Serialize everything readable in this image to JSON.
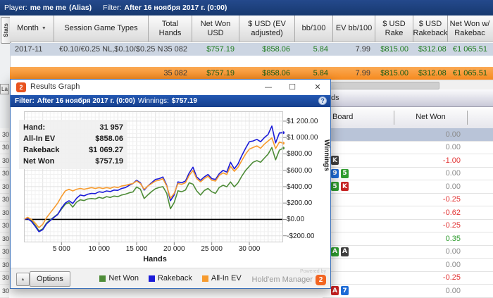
{
  "main": {
    "topbar": {
      "player_label": "Player:",
      "player": "me me me",
      "alias": "(Alias)",
      "filter_label": "Filter:",
      "filter_value": "After 16 ноября 2017 г. (0:00)"
    },
    "stats_tab": "Stats",
    "columns": [
      "Month",
      "Session Game Types",
      "Total Hands",
      "Net Won USD",
      "$ USD (EV adjusted)",
      "bb/100",
      "EV bb/100",
      "$ USD Rake",
      "$ USD Rakeback",
      "Net Won w/ Rakebac"
    ],
    "sort_icon": "▼",
    "row": {
      "month": "2017-11",
      "session": "€0.10/€0.25 NL,$0.10/$0.25 N",
      "hands": "35 082",
      "net_won": "$757.19",
      "ev_adjusted": "$858.06",
      "bb100": "5.84",
      "ev_bb100": "7.99",
      "rake": "$815.00",
      "rakeback": "$312.08",
      "net_with_rb": "€1 065.51"
    },
    "totals": {
      "hands": "35 082",
      "net_won": "$757.19",
      "ev_adjusted": "$858.06",
      "bb100": "5.84",
      "ev_bb100": "7.99",
      "rake": "$815.00",
      "rakeback": "$312.08",
      "net_with_rb": "€1 065.51"
    }
  },
  "bg_table": {
    "strip_partial_text": "ds",
    "left_tab_partial": "La",
    "left_strip_value": "30",
    "columns": {
      "board": "Board",
      "net_won": "Net Won"
    },
    "rows": [
      {
        "cards": [],
        "net": "0.00",
        "tone": "zero",
        "selected": true
      },
      {
        "cards": [],
        "net": "0.00",
        "tone": "zero",
        "selected": false
      },
      {
        "cards": [
          {
            "r": "K",
            "s": "spade"
          }
        ],
        "net": "-1.00",
        "tone": "neg",
        "selected": false
      },
      {
        "cards": [
          {
            "r": "9",
            "s": "diamond"
          },
          {
            "r": "5",
            "s": "club"
          }
        ],
        "net": "0.00",
        "tone": "zero",
        "selected": false
      },
      {
        "cards": [
          {
            "r": "5",
            "s": "club"
          },
          {
            "r": "K",
            "s": "heart"
          }
        ],
        "net": "0.00",
        "tone": "zero",
        "selected": false
      },
      {
        "cards": [],
        "net": "-0.25",
        "tone": "neg",
        "selected": false
      },
      {
        "cards": [],
        "net": "-0.62",
        "tone": "neg",
        "selected": false
      },
      {
        "cards": [],
        "net": "-0.25",
        "tone": "neg",
        "selected": false
      },
      {
        "cards": [],
        "net": "0.35",
        "tone": "pos",
        "selected": false
      },
      {
        "cards": [
          {
            "r": "A",
            "s": "club"
          },
          {
            "r": "A",
            "s": "spade"
          }
        ],
        "net": "0.00",
        "tone": "zero",
        "selected": false
      },
      {
        "cards": [],
        "net": "0.00",
        "tone": "zero",
        "selected": false
      },
      {
        "cards": [],
        "net": "-0.25",
        "tone": "neg",
        "selected": false
      },
      {
        "cards": [
          {
            "r": "A",
            "s": "heart"
          },
          {
            "r": "7",
            "s": "diamond"
          }
        ],
        "net": "0.00",
        "tone": "zero",
        "selected": false
      }
    ]
  },
  "popup": {
    "title": "Results Graph",
    "window_buttons": {
      "minimize": "—",
      "maximize": "☐",
      "close": "✕"
    },
    "logo_glyph": "2",
    "filter_label": "Filter:",
    "filter_value": "After 16 ноября 2017 г. (0:00)",
    "winnings_label": "Winnings:",
    "winnings_value": "$757.19",
    "help_glyph": "?",
    "tooltip": {
      "rows": [
        {
          "label": "Hand:",
          "value": "31 957"
        },
        {
          "label": "All-In EV",
          "value": "$858.06"
        },
        {
          "label": "Rakeback",
          "value": "$1 069.27"
        },
        {
          "label": "Net Won",
          "value": "$757.19"
        }
      ]
    },
    "options_label": "Options",
    "collapse_glyph": "▲",
    "legend": [
      {
        "label": "Net Won",
        "color": "#4e8c38"
      },
      {
        "label": "Rakeback",
        "color": "#1b1bd8"
      },
      {
        "label": "All-In EV",
        "color": "#f79b2e"
      }
    ],
    "powered_by": "Powered by",
    "brand": "Hold'em Manager",
    "brand_num": "2"
  },
  "chart_data": {
    "type": "line",
    "title": "Results Graph",
    "xlabel": "Hands",
    "ylabel": "Winnings",
    "xlim": [
      0,
      34500
    ],
    "ylim": [
      -280,
      1320
    ],
    "x_tick_values": [
      5000,
      10000,
      15000,
      20000,
      25000,
      30000
    ],
    "x_tick_labels": [
      "5 000",
      "10 000",
      "15 000",
      "20 000",
      "25 000",
      "30 000"
    ],
    "y_tick_values": [
      1200,
      1000,
      800,
      600,
      400,
      200,
      0,
      -200
    ],
    "y_tick_labels": [
      "$1 200.00",
      "$1 000.00",
      "$800.00",
      "$600.00",
      "$400.00",
      "$200.00",
      "$0.00",
      "-$200.00"
    ],
    "grid": true,
    "legend_position": "bottom",
    "zero_line": 0,
    "x_step": 500,
    "series": [
      {
        "name": "Net Won",
        "color": "#4e8c38",
        "values": [
          0,
          15,
          -15,
          -70,
          -140,
          -115,
          -45,
          -5,
          30,
          65,
          125,
          185,
          205,
          150,
          210,
          240,
          230,
          250,
          255,
          250,
          270,
          258,
          278,
          268,
          285,
          278,
          298,
          308,
          325,
          335,
          395,
          370,
          255,
          300,
          340,
          375,
          390,
          400,
          320,
          130,
          205,
          350,
          338,
          358,
          448,
          430,
          348,
          298,
          352,
          378,
          338,
          318,
          390,
          418,
          398,
          458,
          398,
          448,
          528,
          598,
          648,
          698,
          718,
          698,
          748,
          798,
          878,
          728,
          845,
          870
        ]
      },
      {
        "name": "Rakeback",
        "color": "#1b1bd8",
        "values": [
          0,
          8,
          -25,
          -85,
          -150,
          -125,
          -55,
          -15,
          25,
          60,
          140,
          200,
          228,
          195,
          258,
          298,
          288,
          308,
          318,
          315,
          338,
          330,
          348,
          340,
          358,
          355,
          378,
          388,
          415,
          438,
          478,
          448,
          358,
          408,
          448,
          488,
          498,
          518,
          418,
          228,
          298,
          458,
          448,
          468,
          568,
          638,
          518,
          478,
          518,
          548,
          498,
          488,
          558,
          598,
          578,
          698,
          618,
          678,
          778,
          868,
          948,
          958,
          978,
          948,
          998,
          1038,
          1140,
          935,
          1055,
          1060
        ]
      },
      {
        "name": "All-In EV",
        "color": "#f79b2e",
        "values": [
          0,
          25,
          0,
          -45,
          -100,
          -60,
          20,
          80,
          140,
          200,
          280,
          348,
          368,
          348,
          368,
          378,
          368,
          378,
          388,
          378,
          388,
          378,
          388,
          380,
          398,
          388,
          408,
          415,
          428,
          438,
          468,
          438,
          368,
          408,
          438,
          468,
          478,
          498,
          408,
          258,
          318,
          438,
          428,
          448,
          538,
          598,
          498,
          458,
          498,
          528,
          478,
          468,
          538,
          568,
          548,
          648,
          588,
          638,
          718,
          798,
          858,
          878,
          898,
          868,
          918,
          958,
          995,
          865,
          945,
          930
        ]
      }
    ]
  }
}
